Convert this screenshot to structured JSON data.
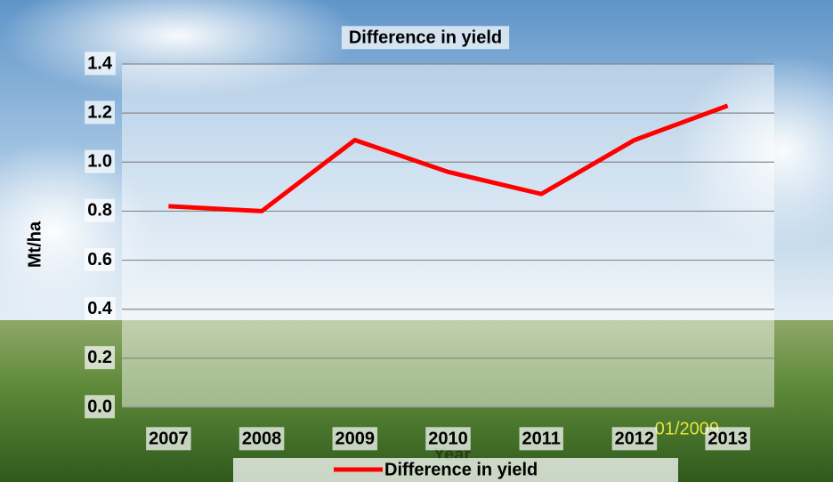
{
  "chart_data": {
    "type": "line",
    "title": "Difference in yield",
    "y_label": "Mt/ha",
    "x_label": "Year",
    "categories": [
      "2007",
      "2008",
      "2009",
      "2010",
      "2011",
      "2012",
      "2013"
    ],
    "series": [
      {
        "name": "Difference in yield",
        "color": "#ff0000",
        "values": [
          0.82,
          0.8,
          1.09,
          0.96,
          0.87,
          1.09,
          1.23
        ]
      }
    ],
    "ylim": [
      0,
      1.4
    ],
    "yticks": [
      {
        "value": 0,
        "label": "0.0"
      },
      0.2,
      0.4,
      0.6,
      0.8,
      {
        "value": 1,
        "label": "1.0"
      },
      1.2,
      1.4
    ],
    "grid": true,
    "legend": "bottom",
    "photo_stamp": "01/2009"
  }
}
